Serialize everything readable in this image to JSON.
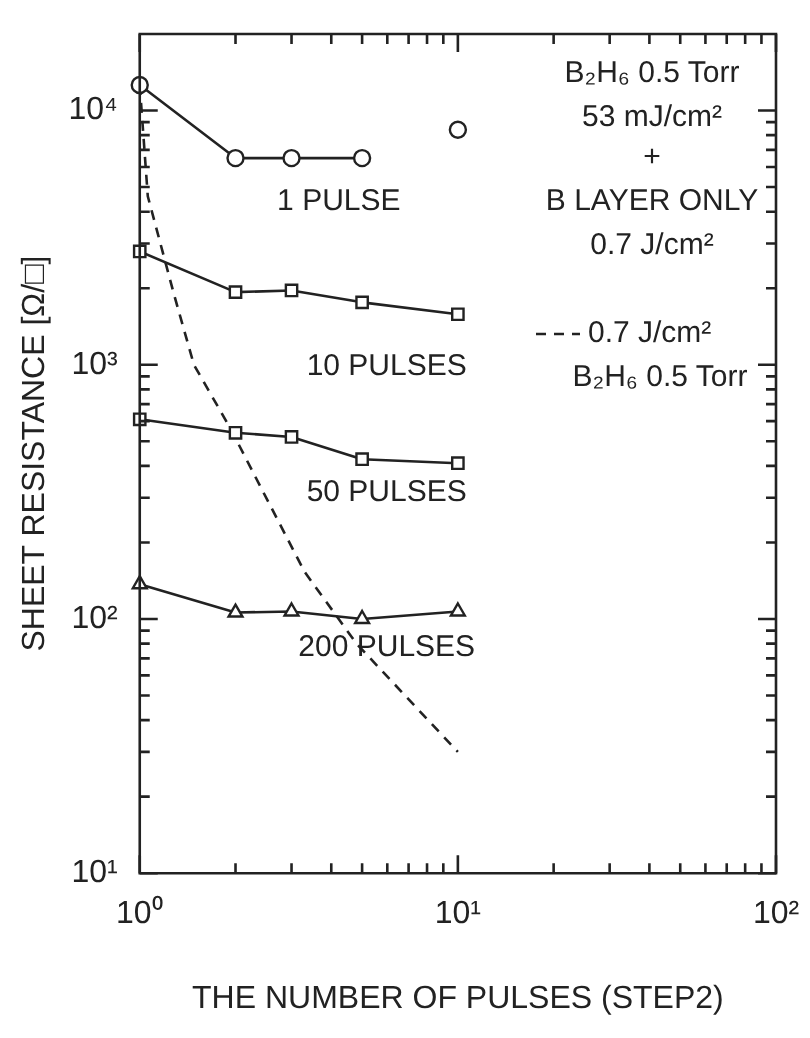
{
  "chart_data": {
    "type": "line",
    "xlabel": "THE NUMBER OF PULSES (STEP2)",
    "ylabel": "SHEET RESISTANCE [Ω/□]",
    "log": "xy",
    "xlim": [
      1,
      100
    ],
    "ylim": [
      10,
      20000
    ],
    "xticks": [
      {
        "value": 1,
        "label": "10⁰"
      },
      {
        "value": 2,
        "label": null
      },
      {
        "value": 3,
        "label": null
      },
      {
        "value": 4,
        "label": null
      },
      {
        "value": 5,
        "label": null
      },
      {
        "value": 6,
        "label": null
      },
      {
        "value": 7,
        "label": null
      },
      {
        "value": 8,
        "label": null
      },
      {
        "value": 9,
        "label": null
      },
      {
        "value": 10,
        "label": "10¹"
      },
      {
        "value": 20,
        "label": null
      },
      {
        "value": 30,
        "label": null
      },
      {
        "value": 40,
        "label": null
      },
      {
        "value": 50,
        "label": null
      },
      {
        "value": 60,
        "label": null
      },
      {
        "value": 70,
        "label": null
      },
      {
        "value": 80,
        "label": null
      },
      {
        "value": 90,
        "label": null
      },
      {
        "value": 100,
        "label": "10²"
      }
    ],
    "yticks": [
      {
        "value": 10,
        "label": "10¹"
      },
      {
        "value": 20,
        "label": null
      },
      {
        "value": 30,
        "label": null
      },
      {
        "value": 40,
        "label": null
      },
      {
        "value": 50,
        "label": null
      },
      {
        "value": 60,
        "label": null
      },
      {
        "value": 70,
        "label": null
      },
      {
        "value": 80,
        "label": null
      },
      {
        "value": 90,
        "label": null
      },
      {
        "value": 100,
        "label": "10²"
      },
      {
        "value": 200,
        "label": null
      },
      {
        "value": 300,
        "label": null
      },
      {
        "value": 400,
        "label": null
      },
      {
        "value": 500,
        "label": null
      },
      {
        "value": 600,
        "label": null
      },
      {
        "value": 700,
        "label": null
      },
      {
        "value": 800,
        "label": null
      },
      {
        "value": 900,
        "label": null
      },
      {
        "value": 1000,
        "label": "10³"
      },
      {
        "value": 2000,
        "label": null
      },
      {
        "value": 3000,
        "label": null
      },
      {
        "value": 4000,
        "label": null
      },
      {
        "value": 5000,
        "label": null
      },
      {
        "value": 6000,
        "label": null
      },
      {
        "value": 7000,
        "label": null
      },
      {
        "value": 8000,
        "label": null
      },
      {
        "value": 9000,
        "label": null
      },
      {
        "value": 10000,
        "label": "10⁴"
      }
    ],
    "grid": false,
    "legend": "right",
    "series": [
      {
        "name": "1 PULSE",
        "color": "#222222",
        "marker": "circle",
        "line_style": "solid",
        "x": [
          1,
          2,
          3,
          5
        ],
        "values": [
          12600,
          6500,
          6500,
          6500
        ]
      },
      {
        "type": "scatter",
        "color": "#222222",
        "marker": "circle",
        "x": [
          10
        ],
        "values": [
          8400
        ]
      },
      {
        "name": "10 PULSES",
        "color": "#222222",
        "marker": "square",
        "line_style": "solid",
        "x": [
          1,
          2,
          3,
          5,
          10
        ],
        "values": [
          2790,
          1930,
          1960,
          1760,
          1580
        ]
      },
      {
        "name": "50 PULSES",
        "color": "#222222",
        "marker": "square",
        "line_style": "solid",
        "x": [
          1,
          2,
          3,
          5,
          10
        ],
        "values": [
          610,
          540,
          520,
          425,
          410
        ]
      },
      {
        "name": "200 PULSES",
        "color": "#222222",
        "marker": "triangle",
        "line_style": "solid",
        "x": [
          1,
          2,
          3,
          5,
          10
        ],
        "values": [
          137,
          106,
          107,
          100,
          107
        ]
      },
      {
        "name": "0.7 J/cm²",
        "color": "#222222",
        "marker": "none",
        "line_style": "dashed",
        "x": [
          1,
          1.06,
          1.28,
          1.48,
          1.93,
          2.4,
          3.3,
          4.8,
          10
        ],
        "values": [
          12600,
          4600,
          1900,
          1000,
          560,
          330,
          153,
          80,
          30
        ]
      }
    ],
    "annotations": [
      "B₂H₆ 0.5 Torr",
      "53 mJ/cm²",
      "+",
      "B LAYER ONLY",
      "0.7 J/cm²",
      "B₂H₆ 0.5 Torr"
    ]
  }
}
